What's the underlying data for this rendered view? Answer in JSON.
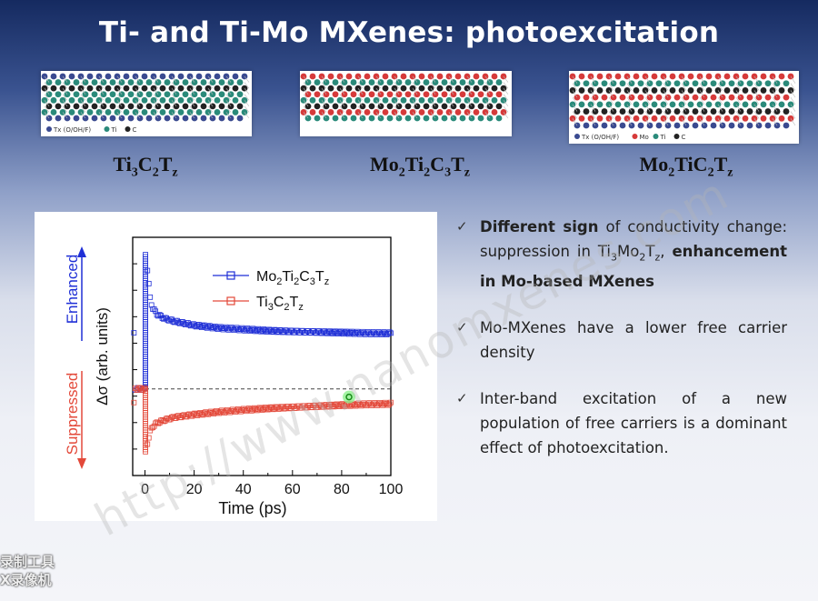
{
  "slide": {
    "title": "Ti- and Ti-Mo MXenes: photoexcitation"
  },
  "structures": [
    {
      "formula_parts": [
        "Ti",
        "3",
        "C",
        "2",
        "T",
        "z"
      ],
      "legend": "T_x (O/OH/F)  ● Ti ● C"
    },
    {
      "formula_parts": [
        "Mo",
        "2",
        "Ti",
        "2",
        "C",
        "3",
        "T",
        "z"
      ],
      "legend": ""
    },
    {
      "formula_parts": [
        "Mo",
        "2",
        "TiC",
        "2",
        "T",
        "z"
      ],
      "legend": "T_x (O/OH/F)  ● Mo ● Ti ● C"
    }
  ],
  "structure_legends": {
    "s1_tx": "T",
    "s1_tx_sub": "x",
    "s1_rest": " (O/OH/F)",
    "s1_ti": "Ti",
    "s1_c": "C",
    "s3_rest": " (O/OH/F)",
    "s3_mo": "Mo",
    "s3_ti": "Ti",
    "s3_c": "C"
  },
  "colors": {
    "blue_series": "#1f2fd6",
    "red_series": "#e3493a",
    "atom_teal": "#2a8a7a",
    "atom_red": "#d63a3a",
    "atom_navy": "#3a4a90"
  },
  "bullets": [
    {
      "bold_a": "Different sign",
      "text_a": " of conductivity change: suppression in Ti",
      "sub1": "3",
      "mid": "Mo",
      "sub2": "2",
      "t": "T",
      "sub3": "z",
      "comma": ",",
      "bold_b": "enhancement in Mo-based MXenes"
    },
    {
      "text": "Mo-MXenes have a lower free carrier density"
    },
    {
      "text": "Inter-band excitation of a new population of free carriers is a dominant effect of photoexcitation."
    }
  ],
  "chart_data": {
    "type": "line",
    "xlabel": "Time (ps)",
    "ylabel": "Δσ (arb. units)",
    "xlim": [
      -5,
      100
    ],
    "xticks": [
      0,
      20,
      40,
      60,
      80,
      100
    ],
    "left_labels": {
      "top": "Enhanced",
      "bottom": "Suppressed"
    },
    "series": [
      {
        "name": "Mo2Ti2C3Tz",
        "label_parts": [
          "Mo",
          "2",
          "Ti",
          "2",
          "C",
          "3",
          "T",
          "z"
        ],
        "color": "#1f2fd6",
        "x": [
          -4,
          -2,
          -1,
          0,
          0.5,
          1,
          2,
          3,
          5,
          8,
          12,
          20,
          30,
          40,
          50,
          60,
          70,
          80,
          90,
          100
        ],
        "y": [
          0,
          0,
          0,
          0,
          5.0,
          4.4,
          3.4,
          3.0,
          2.75,
          2.6,
          2.5,
          2.35,
          2.25,
          2.2,
          2.15,
          2.12,
          2.1,
          2.08,
          2.06,
          2.05
        ]
      },
      {
        "name": "Ti3C2Tz",
        "label_parts": [
          "Ti",
          "3",
          "C",
          "2",
          "T",
          "z"
        ],
        "color": "#e3493a",
        "x": [
          -4,
          -2,
          -1,
          0,
          0.5,
          1,
          2,
          3,
          5,
          8,
          12,
          20,
          30,
          40,
          50,
          60,
          70,
          80,
          90,
          100
        ],
        "y": [
          0,
          0,
          0,
          0,
          -2.4,
          -2.0,
          -1.6,
          -1.4,
          -1.25,
          -1.15,
          -1.05,
          -0.95,
          -0.85,
          -0.78,
          -0.72,
          -0.68,
          -0.64,
          -0.6,
          -0.57,
          -0.55
        ]
      }
    ],
    "baseline": 0
  },
  "watermark": "http://www.nanomxenes.com",
  "recorder_lines": [
    "录制工具",
    "X录像机"
  ]
}
